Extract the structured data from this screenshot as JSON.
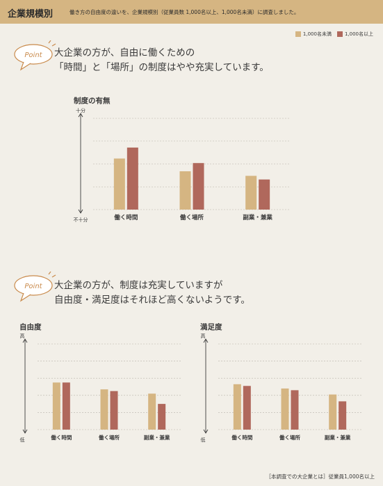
{
  "header": {
    "title": "企業規模別",
    "subtitle": "働き方の自由度の違いを、企業規模別（従業員数 1,000名以上、1,000名未満）に調査しました。"
  },
  "legend": {
    "items": [
      {
        "label": "1,000名未満",
        "color": "#d5b582"
      },
      {
        "label": "1,000名以上",
        "color": "#b0685c"
      }
    ]
  },
  "point1": {
    "badge": "Point",
    "line1": "大企業の方が、自由に働くための",
    "line2": "「時間」と「場所」の制度はやや充実しています。"
  },
  "point2": {
    "badge": "Point",
    "line1": "大企業の方が、制度は充実していますが",
    "line2": "自由度・満足度はそれほど高くないようです。"
  },
  "chart_data": [
    {
      "type": "bar",
      "title": "制度の有無",
      "categories": [
        "働く時間",
        "働く場所",
        "副業・兼業"
      ],
      "series": [
        {
          "name": "1,000名未満",
          "values": [
            56,
            42,
            37
          ]
        },
        {
          "name": "1,000名以上",
          "values": [
            68,
            51,
            33
          ]
        }
      ],
      "yaxis_top": "十分",
      "yaxis_bottom": "不十分",
      "ylim": [
        0,
        100
      ],
      "grid": true
    },
    {
      "type": "bar",
      "title": "自由度",
      "categories": [
        "働く時間",
        "働く場所",
        "副業・兼業"
      ],
      "series": [
        {
          "name": "1,000名未満",
          "values": [
            55,
            47,
            42
          ]
        },
        {
          "name": "1,000名以上",
          "values": [
            55,
            45,
            30
          ]
        }
      ],
      "yaxis_top": "高",
      "yaxis_bottom": "低",
      "ylim": [
        0,
        100
      ],
      "grid": true
    },
    {
      "type": "bar",
      "title": "満足度",
      "categories": [
        "働く時間",
        "働く場所",
        "副業・兼業"
      ],
      "series": [
        {
          "name": "1,000名未満",
          "values": [
            53,
            48,
            41
          ]
        },
        {
          "name": "1,000名以上",
          "values": [
            51,
            46,
            33
          ]
        }
      ],
      "yaxis_top": "高",
      "yaxis_bottom": "低",
      "ylim": [
        0,
        100
      ],
      "grid": true
    }
  ],
  "footnote": "［本調査での大企業とは］従業員1,000名以上"
}
